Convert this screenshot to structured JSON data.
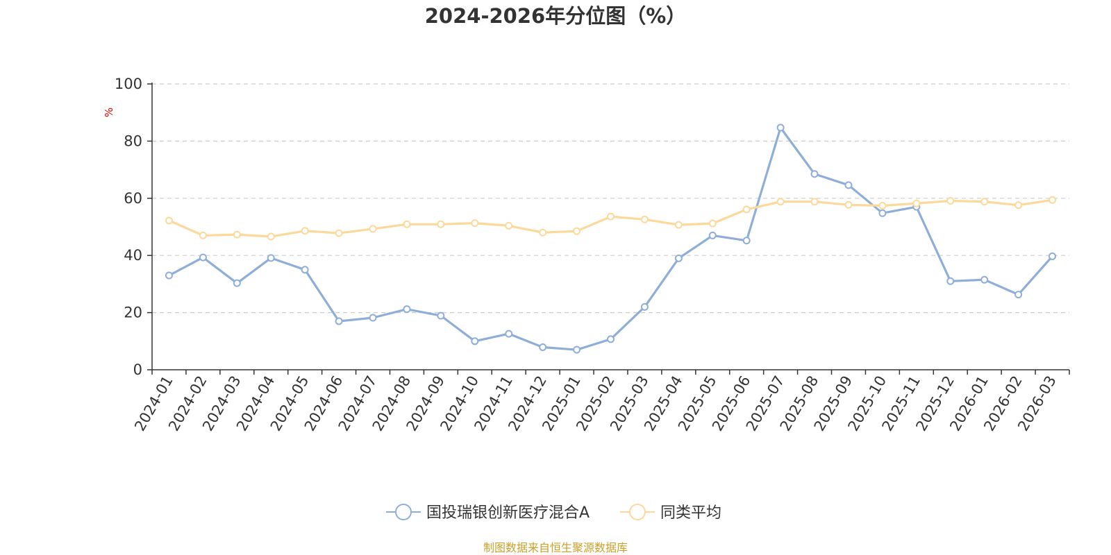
{
  "chart_data": {
    "type": "line",
    "title": "2024-2026年分位图（%）",
    "ylabel": "%",
    "ylim": [
      0,
      100
    ],
    "yticks": [
      0,
      20,
      40,
      60,
      80,
      100
    ],
    "grid": true,
    "legend_position": "bottom-center",
    "categories": [
      "2024-01",
      "2024-02",
      "2024-03",
      "2024-04",
      "2024-05",
      "2024-06",
      "2024-07",
      "2024-08",
      "2024-09",
      "2024-10",
      "2024-11",
      "2024-12",
      "2025-01",
      "2025-02",
      "2025-03",
      "2025-04",
      "2025-05",
      "2025-06",
      "2025-07",
      "2025-08",
      "2025-09",
      "2025-10",
      "2025-11",
      "2025-12",
      "2026-01",
      "2026-02",
      "2026-03"
    ],
    "series": [
      {
        "name": "国投瑞银创新医疗混合A",
        "color": "#8eaed8",
        "values": [
          33.0,
          39.3,
          30.3,
          39.1,
          35.0,
          17.0,
          18.2,
          21.2,
          18.9,
          10.0,
          12.6,
          7.9,
          7.0,
          10.7,
          22.0,
          39.0,
          47.0,
          45.2,
          84.7,
          68.5,
          64.6,
          54.8,
          57.0,
          31.0,
          31.5,
          26.3,
          39.7
        ]
      },
      {
        "name": "同类平均",
        "color": "#fcd99a",
        "values": [
          52.2,
          47.0,
          47.3,
          46.6,
          48.6,
          47.8,
          49.3,
          50.9,
          50.9,
          51.3,
          50.4,
          48.0,
          48.5,
          53.6,
          52.6,
          50.7,
          51.2,
          56.1,
          58.8,
          58.8,
          57.7,
          57.4,
          58.2,
          59.1,
          58.8,
          57.6,
          59.4
        ]
      }
    ]
  },
  "footer": {
    "source": "制图数据来自恒生聚源数据库"
  }
}
